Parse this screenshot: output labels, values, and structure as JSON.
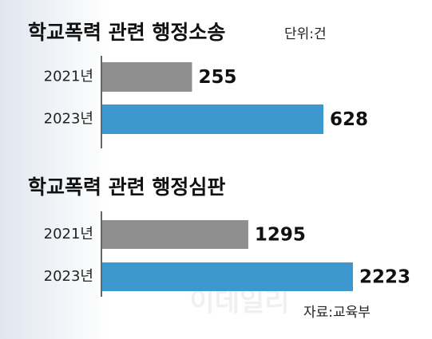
{
  "chart_data": [
    {
      "type": "barh",
      "title": "학교폭력 관련 행정소송",
      "subtitle": "단위:건",
      "categories": [
        "2021년",
        "2023년"
      ],
      "values": [
        255,
        628
      ],
      "colors": [
        "#8f8f8f",
        "#3d98d0"
      ]
    },
    {
      "type": "barh",
      "title": "학교폭력 관련 행정심판",
      "categories": [
        "2021년",
        "2023년"
      ],
      "values": [
        1295,
        2223
      ],
      "colors": [
        "#8f8f8f",
        "#3d98d0"
      ]
    }
  ],
  "watermark": "이데일리",
  "source": "자료:교육부"
}
